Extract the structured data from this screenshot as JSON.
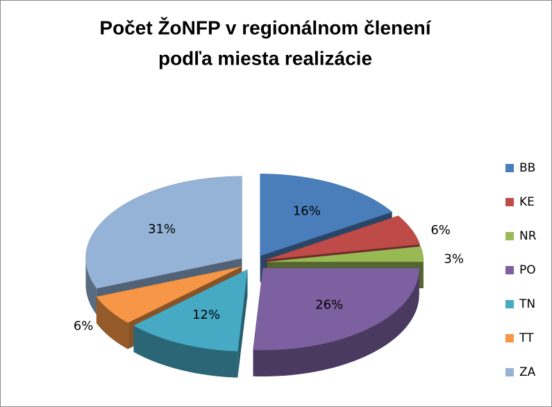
{
  "chart_data": {
    "type": "pie",
    "title": [
      "Počet ŽoNFP v regionálnom členení",
      "podľa miesta realizácie"
    ],
    "categories": [
      "BB",
      "KE",
      "NR",
      "PO",
      "TN",
      "TT",
      "ZA"
    ],
    "values": [
      16,
      6,
      3,
      26,
      12,
      6,
      31
    ],
    "value_labels": [
      "16%",
      "6%",
      "3%",
      "26%",
      "12%",
      "6%",
      "31%"
    ],
    "colors": [
      "#4a7ebb",
      "#be4b48",
      "#98b954",
      "#7d60a0",
      "#46aac5",
      "#f79646",
      "#95b3d7"
    ],
    "legend": "right"
  }
}
